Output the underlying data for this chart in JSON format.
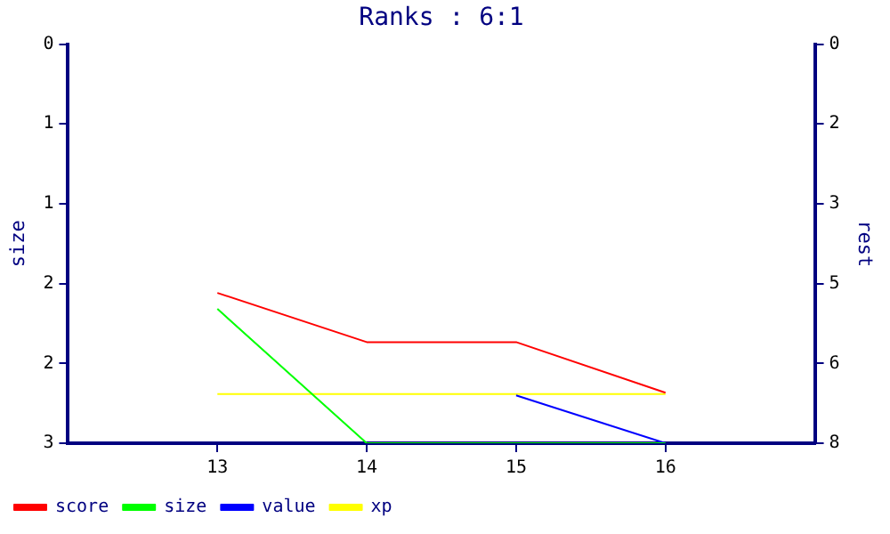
{
  "chart_data": {
    "type": "line",
    "title": "Ranks : 6:1",
    "ylabel": "size",
    "y2label": "rest",
    "x": [
      13,
      14,
      15,
      16
    ],
    "xlim": [
      12,
      17
    ],
    "xticks": [
      13,
      14,
      15,
      16
    ],
    "ylim": [
      3,
      0
    ],
    "yticks": [
      0,
      {
        "value": 0.6,
        "label": "1"
      },
      {
        "value": 1.2,
        "label": "1"
      },
      {
        "value": 1.8,
        "label": "2"
      },
      {
        "value": 2.4,
        "label": "2"
      },
      3
    ],
    "y2lim": [
      8,
      0
    ],
    "y2ticks": [
      0,
      {
        "value": 1.6,
        "label": "2"
      },
      {
        "value": 3.2,
        "label": "3"
      },
      {
        "value": 4.8,
        "label": "5"
      },
      {
        "value": 6.4,
        "label": "6"
      },
      8
    ],
    "series": [
      {
        "name": "score",
        "color": "#ff0000",
        "values": [
          1.87,
          2.24,
          2.24,
          2.62
        ]
      },
      {
        "name": "size",
        "color": "#00ff00",
        "values": [
          1.99,
          3,
          3,
          3
        ]
      },
      {
        "name": "value",
        "color": "#0000ff",
        "values": [
          null,
          null,
          2.64,
          3
        ]
      },
      {
        "name": "xp",
        "color": "#ffff00",
        "values": [
          2.63,
          2.63,
          2.63,
          2.63
        ]
      }
    ],
    "legend": "bottom",
    "marker": "none",
    "line_style": "solid",
    "grid": false
  }
}
